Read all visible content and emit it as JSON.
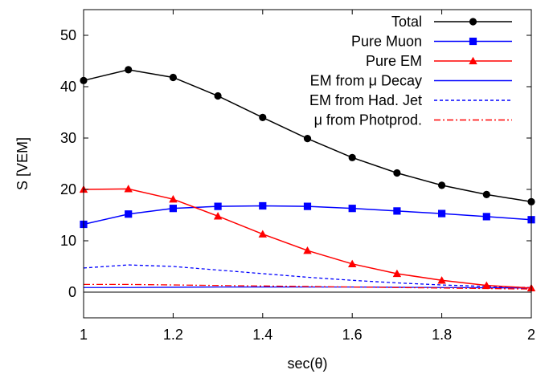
{
  "chart_data": {
    "type": "line",
    "xlabel": "sec(θ)",
    "ylabel": "S [VEM]",
    "xlim": [
      1,
      2
    ],
    "ylim": [
      -5,
      55
    ],
    "xticks": [
      1,
      1.2,
      1.4,
      1.6,
      1.8,
      2
    ],
    "xtick_labels": [
      "1",
      "1.2",
      "1.4",
      "1.6",
      "1.8",
      "2"
    ],
    "yticks": [
      0,
      10,
      20,
      30,
      40,
      50
    ],
    "ytick_labels": [
      "0",
      "10",
      "20",
      "30",
      "40",
      "50"
    ],
    "grid": false,
    "legend_position": "top-right",
    "zero_line": true,
    "x": [
      1.0,
      1.1,
      1.2,
      1.3,
      1.4,
      1.5,
      1.6,
      1.7,
      1.8,
      1.9,
      2.0
    ],
    "series": [
      {
        "name": "Total",
        "color": "#000000",
        "marker": "circle",
        "dash": "solid",
        "values": [
          41.2,
          43.3,
          41.8,
          38.2,
          34.0,
          29.9,
          26.2,
          23.2,
          20.8,
          19.0,
          17.6
        ]
      },
      {
        "name": "Pure Muon",
        "color": "#0000ff",
        "marker": "square",
        "dash": "solid",
        "values": [
          13.2,
          15.2,
          16.3,
          16.7,
          16.8,
          16.7,
          16.3,
          15.8,
          15.3,
          14.7,
          14.1
        ]
      },
      {
        "name": "Pure EM",
        "color": "#ff0000",
        "marker": "triangle",
        "dash": "solid",
        "values": [
          20.0,
          20.1,
          18.1,
          14.8,
          11.3,
          8.1,
          5.5,
          3.6,
          2.3,
          1.3,
          0.8
        ]
      },
      {
        "name": "EM from μ Decay",
        "color": "#0000ff",
        "marker": "none",
        "dash": "solid",
        "values": [
          0.9,
          0.9,
          0.95,
          1.0,
          1.0,
          1.0,
          1.0,
          0.95,
          0.9,
          0.85,
          0.8
        ]
      },
      {
        "name": "EM from Had. Jet",
        "color": "#0000ff",
        "marker": "none",
        "dash": "dashed",
        "values": [
          4.7,
          5.3,
          5.0,
          4.3,
          3.6,
          2.9,
          2.3,
          1.8,
          1.4,
          1.1,
          0.9
        ]
      },
      {
        "name": "μ from Photprod.",
        "color": "#ff0000",
        "marker": "none",
        "dash": "dashdot",
        "values": [
          1.5,
          1.5,
          1.4,
          1.3,
          1.2,
          1.1,
          1.0,
          0.9,
          0.8,
          0.7,
          0.6
        ]
      }
    ]
  }
}
